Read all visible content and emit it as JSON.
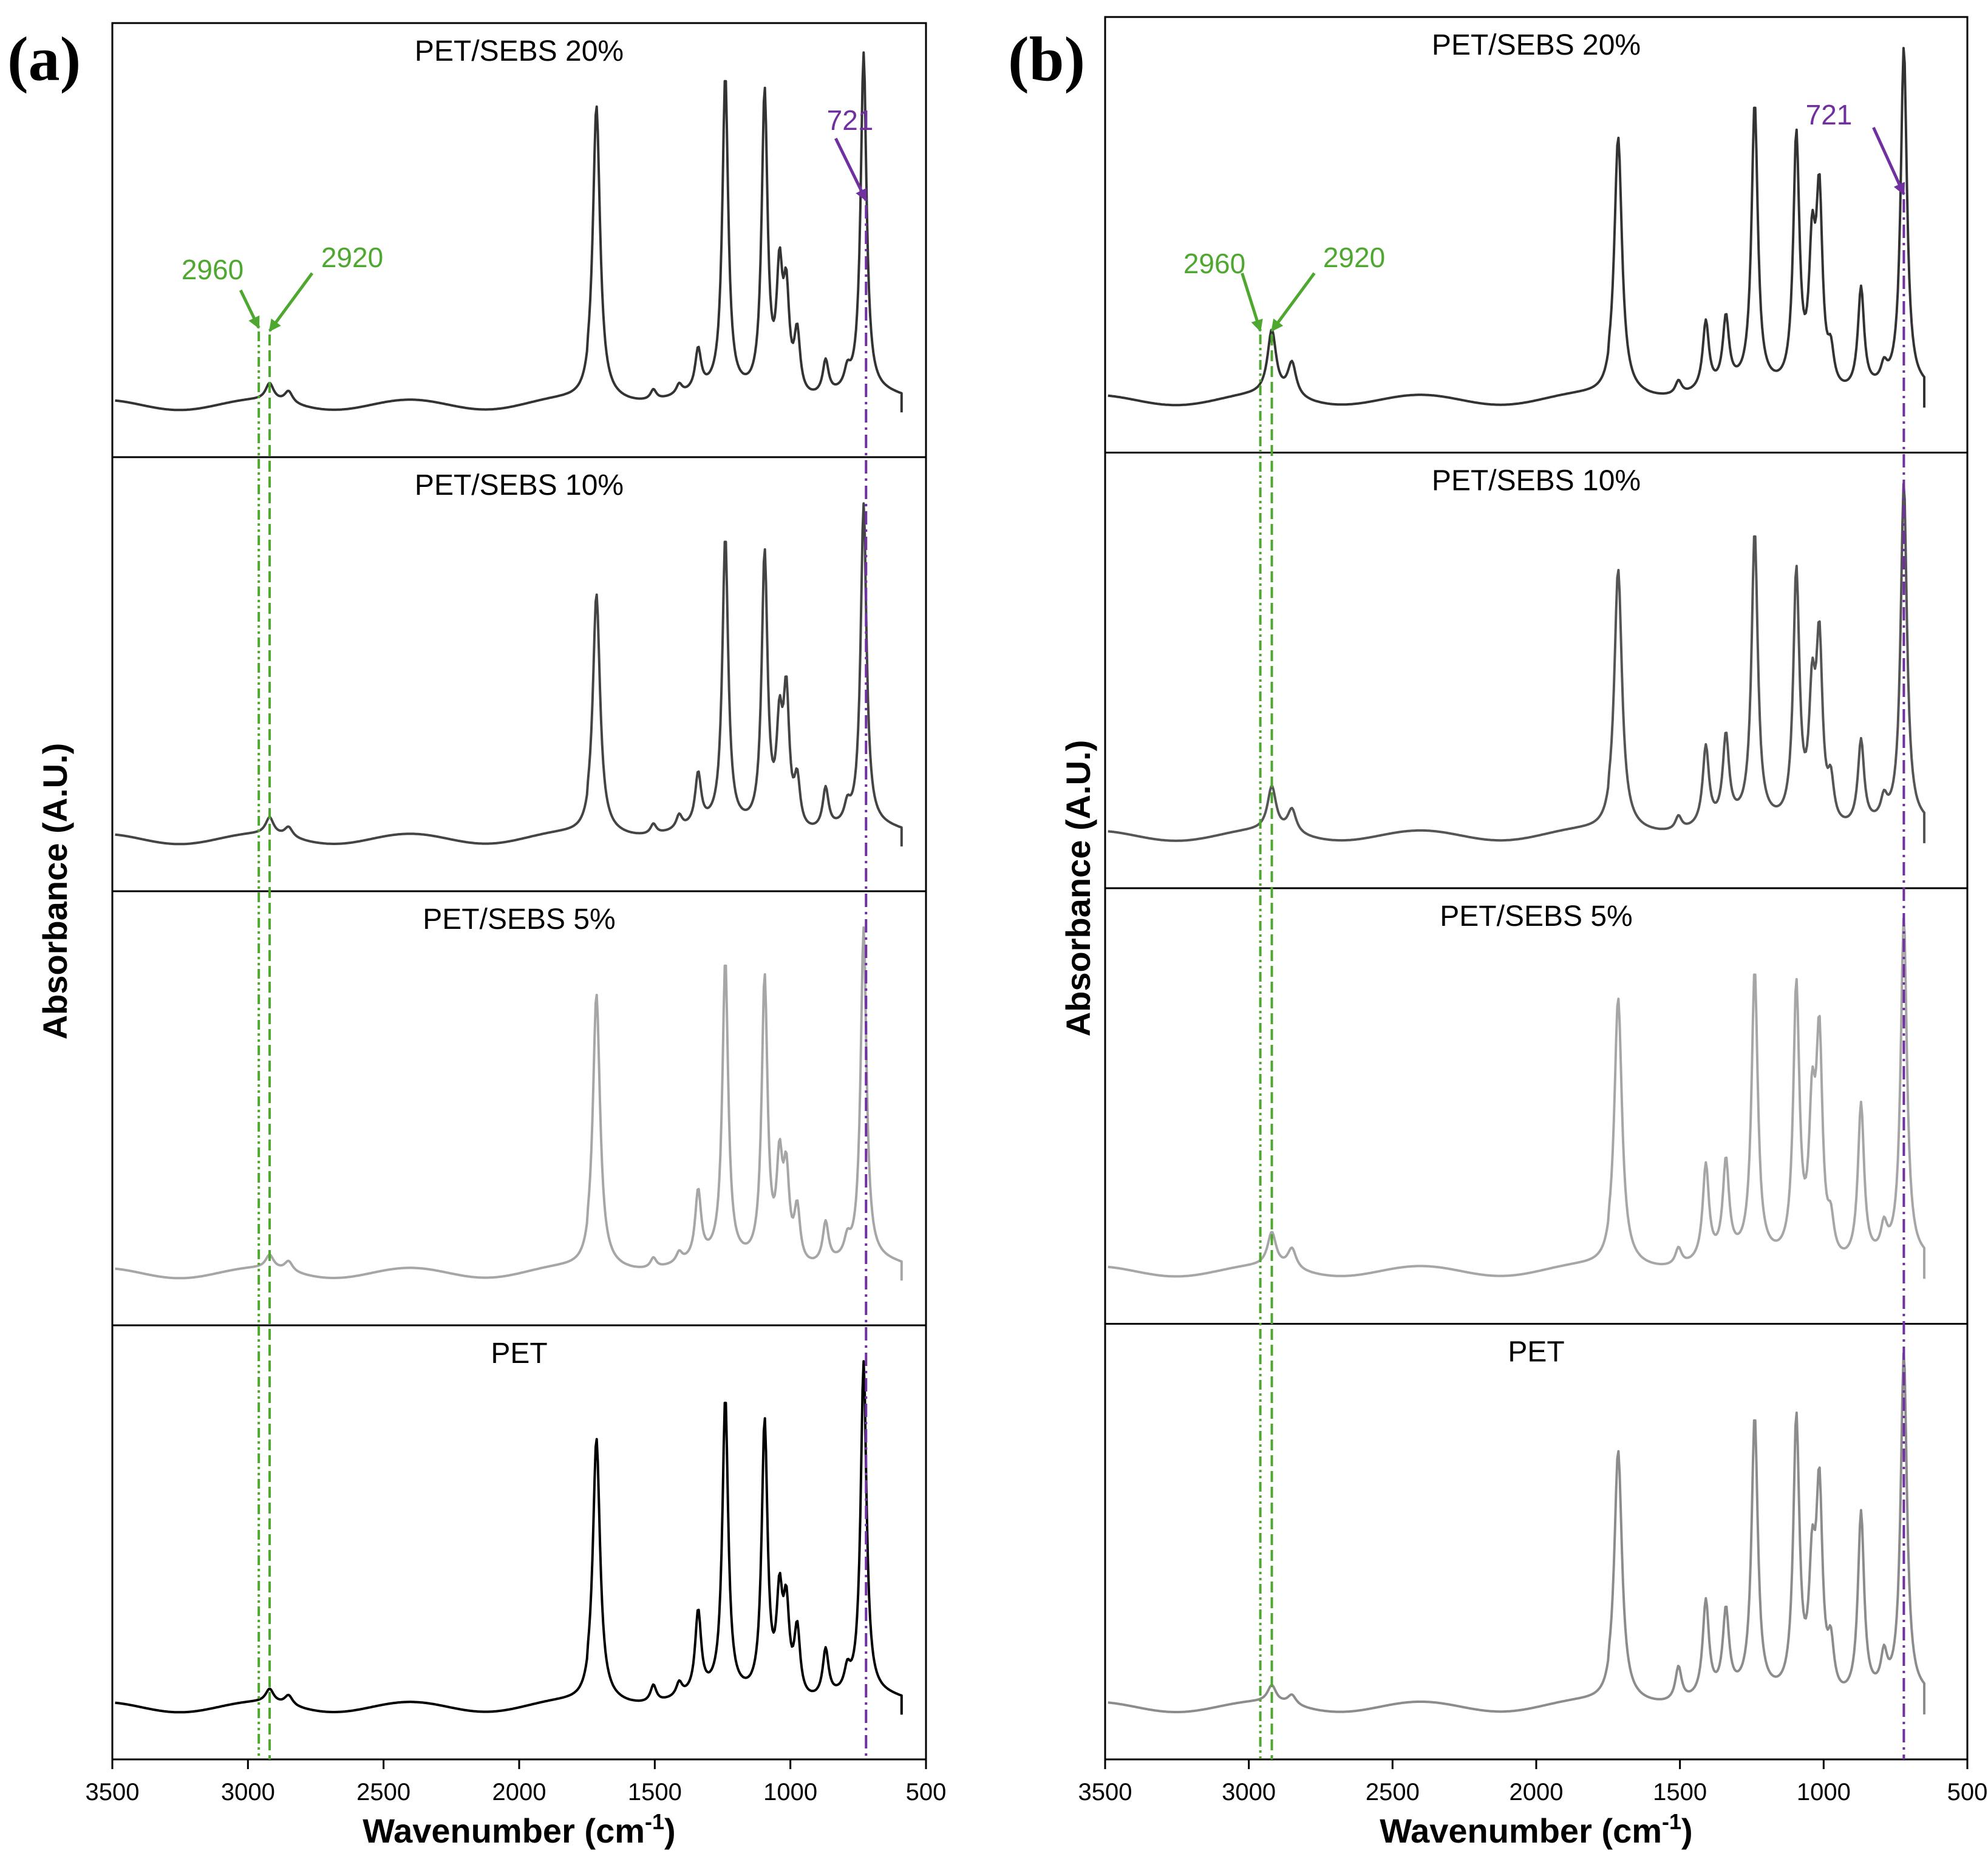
{
  "colors": {
    "green": "#4ea72e",
    "purple": "#7030a0",
    "frame": "#000000"
  },
  "chart_data": [
    {
      "type": "line",
      "panel_label": "(a)",
      "xlabel": "Wavenumber (cm",
      "xlabel_sup": "-1",
      "xlabel_close": ")",
      "ylabel": "Absorbance (A.U.)",
      "xlim": [
        3500,
        500
      ],
      "x_ticks": [
        3500,
        3000,
        2500,
        2000,
        1500,
        1000,
        500
      ],
      "x_tick_labels": [
        "3500",
        "3000",
        "2500",
        "2000",
        "1500",
        "1000",
        "500"
      ],
      "series": [
        {
          "name": "PET/SEBS 20%",
          "color": "#333333",
          "peaks": [
            [
              2920,
              0.05
            ],
            [
              2850,
              0.035
            ],
            [
              1715,
              0.86
            ],
            [
              1505,
              0.03
            ],
            [
              1410,
              0.03
            ],
            [
              1340,
              0.12
            ],
            [
              1240,
              0.93
            ],
            [
              1095,
              0.89
            ],
            [
              1040,
              0.34
            ],
            [
              1015,
              0.28
            ],
            [
              975,
              0.18
            ],
            [
              870,
              0.1
            ],
            [
              790,
              0.05
            ],
            [
              730,
              1.0
            ]
          ]
        },
        {
          "name": "PET/SEBS 10%",
          "color": "#444444",
          "peaks": [
            [
              2920,
              0.05
            ],
            [
              2850,
              0.03
            ],
            [
              1715,
              0.7
            ],
            [
              1505,
              0.03
            ],
            [
              1410,
              0.04
            ],
            [
              1340,
              0.15
            ],
            [
              1240,
              0.85
            ],
            [
              1095,
              0.81
            ],
            [
              1040,
              0.28
            ],
            [
              1015,
              0.38
            ],
            [
              975,
              0.14
            ],
            [
              870,
              0.12
            ],
            [
              790,
              0.05
            ],
            [
              730,
              0.95
            ]
          ]
        },
        {
          "name": "PET/SEBS 5%",
          "color": "#a6a6a6",
          "peaks": [
            [
              2920,
              0.04
            ],
            [
              2850,
              0.03
            ],
            [
              1715,
              0.8
            ],
            [
              1505,
              0.03
            ],
            [
              1410,
              0.03
            ],
            [
              1340,
              0.2
            ],
            [
              1240,
              0.88
            ],
            [
              1095,
              0.84
            ],
            [
              1040,
              0.28
            ],
            [
              1015,
              0.25
            ],
            [
              975,
              0.16
            ],
            [
              870,
              0.12
            ],
            [
              790,
              0.05
            ],
            [
              730,
              0.98
            ]
          ]
        },
        {
          "name": "PET",
          "color": "#000000",
          "peaks": [
            [
              2920,
              0.04
            ],
            [
              2850,
              0.03
            ],
            [
              1715,
              0.77
            ],
            [
              1505,
              0.05
            ],
            [
              1410,
              0.04
            ],
            [
              1340,
              0.24
            ],
            [
              1240,
              0.87
            ],
            [
              1095,
              0.81
            ],
            [
              1040,
              0.28
            ],
            [
              1015,
              0.25
            ],
            [
              975,
              0.2
            ],
            [
              870,
              0.14
            ],
            [
              790,
              0.06
            ],
            [
              730,
              0.98
            ]
          ]
        }
      ],
      "annotations": [
        {
          "text": "2960",
          "x": 2960,
          "color": "#4ea72e",
          "line_style": "dash-dot-dot"
        },
        {
          "text": "2920",
          "x": 2920,
          "color": "#4ea72e",
          "line_style": "dash"
        },
        {
          "text": "721",
          "x": 721,
          "color": "#7030a0",
          "line_style": "dash-dot"
        }
      ]
    },
    {
      "type": "line",
      "panel_label": "(b)",
      "xlabel": "Wavenumber (cm",
      "xlabel_sup": "-1",
      "xlabel_close": ")",
      "ylabel": "Absorbance (A.U.)",
      "xlim": [
        3500,
        500
      ],
      "x_ticks": [
        3500,
        3000,
        2500,
        2000,
        1500,
        1000,
        500
      ],
      "x_tick_labels": [
        "3500",
        "3000",
        "2500",
        "2000",
        "1500",
        "1000",
        "500"
      ],
      "series": [
        {
          "name": "PET/SEBS 20%",
          "color": "#333333",
          "peaks": [
            [
              2920,
              0.19
            ],
            [
              2850,
              0.1
            ],
            [
              1715,
              0.75
            ],
            [
              1505,
              0.04
            ],
            [
              1410,
              0.2
            ],
            [
              1340,
              0.2
            ],
            [
              1240,
              0.83
            ],
            [
              1095,
              0.74
            ],
            [
              1040,
              0.38
            ],
            [
              1015,
              0.55
            ],
            [
              975,
              0.1
            ],
            [
              870,
              0.3
            ],
            [
              790,
              0.05
            ],
            [
              721,
              1.0
            ]
          ]
        },
        {
          "name": "PET/SEBS 10%",
          "color": "#555555",
          "peaks": [
            [
              2920,
              0.13
            ],
            [
              2850,
              0.07
            ],
            [
              1715,
              0.76
            ],
            [
              1505,
              0.04
            ],
            [
              1410,
              0.23
            ],
            [
              1340,
              0.25
            ],
            [
              1240,
              0.85
            ],
            [
              1095,
              0.74
            ],
            [
              1040,
              0.35
            ],
            [
              1015,
              0.52
            ],
            [
              975,
              0.12
            ],
            [
              870,
              0.25
            ],
            [
              790,
              0.06
            ],
            [
              721,
              1.0
            ]
          ]
        },
        {
          "name": "PET/SEBS 5%",
          "color": "#a6a6a6",
          "peaks": [
            [
              2920,
              0.1
            ],
            [
              2850,
              0.06
            ],
            [
              1715,
              0.78
            ],
            [
              1505,
              0.05
            ],
            [
              1410,
              0.28
            ],
            [
              1340,
              0.28
            ],
            [
              1240,
              0.84
            ],
            [
              1095,
              0.8
            ],
            [
              1040,
              0.4
            ],
            [
              1015,
              0.63
            ],
            [
              975,
              0.1
            ],
            [
              870,
              0.46
            ],
            [
              790,
              0.08
            ],
            [
              721,
              1.0
            ]
          ]
        },
        {
          "name": "PET",
          "color": "#8c8c8c",
          "peaks": [
            [
              2920,
              0.05
            ],
            [
              2850,
              0.03
            ],
            [
              1715,
              0.73
            ],
            [
              1505,
              0.1
            ],
            [
              1410,
              0.28
            ],
            [
              1340,
              0.24
            ],
            [
              1240,
              0.81
            ],
            [
              1095,
              0.81
            ],
            [
              1040,
              0.34
            ],
            [
              1015,
              0.59
            ],
            [
              975,
              0.14
            ],
            [
              870,
              0.54
            ],
            [
              790,
              0.1
            ],
            [
              721,
              1.0
            ]
          ]
        }
      ],
      "annotations": [
        {
          "text": "2960",
          "x": 2960,
          "color": "#4ea72e",
          "line_style": "dash-dot-dot"
        },
        {
          "text": "2920",
          "x": 2920,
          "color": "#4ea72e",
          "line_style": "dash"
        },
        {
          "text": "721",
          "x": 721,
          "color": "#7030a0",
          "line_style": "dash-dot"
        }
      ]
    }
  ]
}
